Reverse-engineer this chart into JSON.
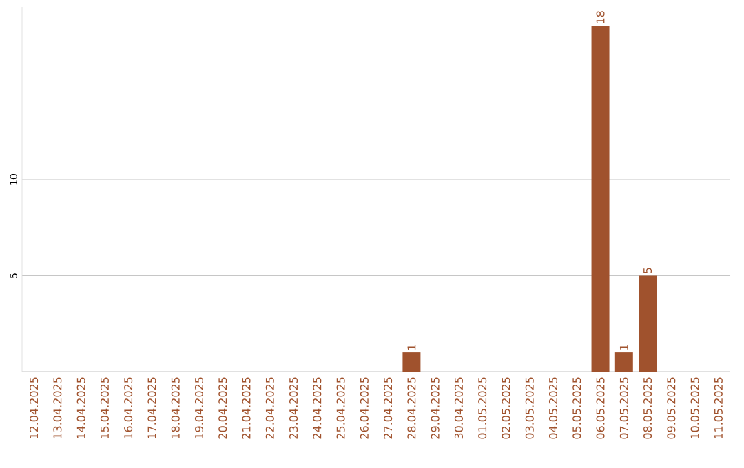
{
  "chart_data": {
    "type": "bar",
    "categories": [
      "12.04.2025",
      "13.04.2025",
      "14.04.2025",
      "15.04.2025",
      "16.04.2025",
      "17.04.2025",
      "18.04.2025",
      "19.04.2025",
      "20.04.2025",
      "21.04.2025",
      "22.04.2025",
      "23.04.2025",
      "24.04.2025",
      "25.04.2025",
      "26.04.2025",
      "27.04.2025",
      "28.04.2025",
      "29.04.2025",
      "30.04.2025",
      "01.05.2025",
      "02.05.2025",
      "03.05.2025",
      "04.05.2025",
      "05.05.2025",
      "06.05.2025",
      "07.05.2025",
      "08.05.2025",
      "09.05.2025",
      "10.05.2025",
      "11.05.2025"
    ],
    "values": [
      0,
      0,
      0,
      0,
      0,
      0,
      0,
      0,
      0,
      0,
      0,
      0,
      0,
      0,
      0,
      0,
      1,
      0,
      0,
      0,
      0,
      0,
      0,
      0,
      18,
      1,
      5,
      0,
      0,
      0
    ],
    "value_labels": [
      null,
      null,
      null,
      null,
      null,
      null,
      null,
      null,
      null,
      null,
      null,
      null,
      null,
      null,
      null,
      null,
      "1",
      null,
      null,
      null,
      null,
      null,
      null,
      null,
      "18",
      "1",
      "5",
      null,
      null,
      null
    ],
    "color": "#a0522d",
    "ylim": [
      0,
      19
    ],
    "yticks": [
      5,
      10
    ],
    "grid": "y"
  }
}
